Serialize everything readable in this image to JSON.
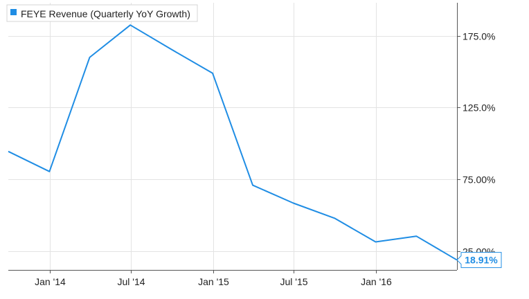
{
  "chart_data": {
    "type": "line",
    "series": [
      {
        "name": "FEYE Revenue (Quarterly YoY Growth)",
        "color": "#1f8de4",
        "x": [
          "2013-09-30",
          "2013-12-31",
          "2014-03-31",
          "2014-06-30",
          "2014-09-30",
          "2014-12-31",
          "2015-03-31",
          "2015-06-30",
          "2015-09-30",
          "2015-12-31",
          "2016-03-31",
          "2016-06-30"
        ],
        "values": [
          94.5,
          80.5,
          160.0,
          182.5,
          165.5,
          149.0,
          71.0,
          58.5,
          48.0,
          31.5,
          35.5,
          18.91
        ]
      }
    ],
    "x_ticks": [
      {
        "date": "2014-01-01",
        "label": "Jan '14"
      },
      {
        "date": "2014-07-01",
        "label": "Jul '14"
      },
      {
        "date": "2015-01-01",
        "label": "Jan '15"
      },
      {
        "date": "2015-07-01",
        "label": "Jul '15"
      },
      {
        "date": "2016-01-01",
        "label": "Jan '16"
      }
    ],
    "y_ticks": [
      {
        "value": 25,
        "label": "25.00%"
      },
      {
        "value": 75,
        "label": "75.00%"
      },
      {
        "value": 125,
        "label": "125.0%"
      },
      {
        "value": 175,
        "label": "175.0%"
      }
    ],
    "last_value_label": "18.91%",
    "xlim": [
      "2013-09-30",
      "2016-06-30"
    ],
    "ylim": [
      12,
      198
    ],
    "grid": true,
    "legend_position": "top-left",
    "colors": {
      "line": "#1f8de4",
      "grid": "#e3e3e3",
      "axis": "#555555",
      "legend_marker": "#1f8de4"
    }
  }
}
